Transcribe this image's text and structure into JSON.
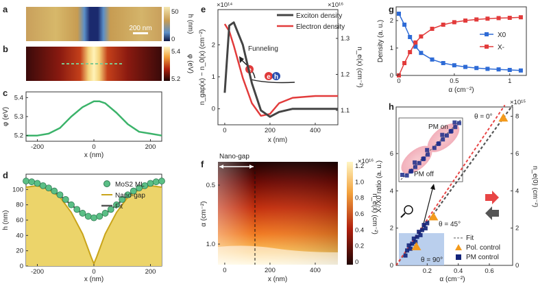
{
  "panels": {
    "a": {
      "label": "a",
      "scalebar": "200 nm",
      "cbar": {
        "ticks": [
          "50",
          "0"
        ],
        "label": "h (nm)"
      }
    },
    "b": {
      "label": "b",
      "cbar": {
        "ticks": [
          "5.4",
          "5.2"
        ],
        "label": "φ (eV)"
      }
    },
    "c": {
      "label": "c",
      "xlabel": "x (nm)",
      "ylabel": "φ (eV)",
      "xticks": [
        "-200",
        "0",
        "200"
      ],
      "yticks": [
        "5.4",
        "5.3",
        "5.2"
      ]
    },
    "d": {
      "label": "d",
      "xlabel": "x (nm)",
      "ylabel": "h (nm)",
      "xticks": [
        "-200",
        "0",
        "200"
      ],
      "yticks": [
        "100",
        "80",
        "60",
        "40",
        "20",
        "0"
      ],
      "legend": [
        "MoS2 ML",
        "Nano-gap",
        "Fit"
      ]
    },
    "e": {
      "label": "e",
      "xlabel": "x (nm)",
      "ylabel_left": "n_gap(x) − n_0(x) (cm⁻²)",
      "ylabel_right": "n_e(x) (cm⁻²)",
      "left_exp": "×10¹⁴",
      "right_exp": "×10¹⁶",
      "xticks": [
        "0",
        "200",
        "400"
      ],
      "yticks_left": [
        "2",
        "1",
        "0"
      ],
      "yticks_right": [
        "1.3",
        "1.2",
        "1.1"
      ],
      "legend": [
        "Exciton density",
        "Electron density"
      ],
      "annotation": "Funneling",
      "badges": [
        "e",
        "e",
        "h"
      ]
    },
    "f": {
      "label": "f",
      "xlabel": "x (nm)",
      "ylabel": "α (cm⁻²)",
      "annotation": "Nano-gap",
      "xticks": [
        "0",
        "200",
        "400"
      ],
      "yticks": [
        "0.5",
        "1.0"
      ],
      "cbar": {
        "ticks": [
          "1.2",
          "1.0",
          "0.8",
          "0.6",
          "0.4",
          "0.2",
          "0"
        ],
        "exp": "×10¹⁶",
        "label": "n_e(x) (cm⁻²)"
      }
    },
    "g": {
      "label": "g",
      "xlabel": "α (cm⁻²)",
      "ylabel": "Density (a. u.)",
      "xticks": [
        "0",
        "0.5",
        "1"
      ],
      "yticks": [
        "2",
        "1",
        "0"
      ],
      "legend": [
        "X0",
        "X-"
      ]
    },
    "h": {
      "label": "h",
      "xlabel": "α (cm⁻²)",
      "ylabel_left": "X-/X0 ratio (a. u.)",
      "ylabel_right": "n_e(0) (cm⁻²)",
      "right_exp": "×10¹⁵",
      "xticks": [
        "0.2",
        "0.4",
        "0.6"
      ],
      "yticks_left": [
        "6",
        "4",
        "2",
        "0"
      ],
      "yticks_right": [
        "8",
        "6",
        "4",
        "2",
        "0"
      ],
      "theta": [
        "θ = 0°",
        "θ = 45°",
        "θ = 90°"
      ],
      "inset": [
        "PM on",
        "PM off"
      ],
      "legend": [
        "Fit",
        "Pol. control",
        "PM control"
      ]
    }
  },
  "chart_data": [
    {
      "panel": "c",
      "type": "line",
      "x": [
        -240,
        -200,
        -160,
        -120,
        -80,
        -40,
        0,
        20,
        40,
        80,
        120,
        160,
        200,
        240
      ],
      "y": [
        5.2,
        5.2,
        5.21,
        5.24,
        5.3,
        5.35,
        5.38,
        5.38,
        5.37,
        5.32,
        5.26,
        5.22,
        5.21,
        5.2
      ],
      "xlim": [
        -240,
        240
      ],
      "ylim": [
        5.17,
        5.43
      ]
    },
    {
      "panel": "d",
      "type": "line+scatter",
      "xlim": [
        -240,
        240
      ],
      "ylim": [
        0,
        120
      ],
      "series": [
        {
          "name": "Nano-gap",
          "x": [
            -240,
            -200,
            -160,
            -120,
            -80,
            -40,
            -10,
            0,
            10,
            40,
            80,
            120,
            160,
            200,
            240
          ],
          "y": [
            103,
            105,
            100,
            90,
            70,
            42,
            12,
            3,
            12,
            42,
            70,
            90,
            100,
            105,
            103
          ]
        },
        {
          "name": "Fit",
          "x": [
            -240,
            -200,
            -160,
            -120,
            -80,
            -40,
            0,
            40,
            80,
            120,
            160,
            200,
            240
          ],
          "y": [
            110,
            108,
            102,
            92,
            80,
            68,
            63,
            68,
            80,
            92,
            102,
            108,
            110
          ]
        },
        {
          "name": "MoS2 ML",
          "x": [
            -240,
            -220,
            -200,
            -180,
            -160,
            -140,
            -120,
            -100,
            -80,
            -60,
            -40,
            -20,
            0,
            20,
            40,
            60,
            80,
            100,
            120,
            140,
            160,
            180,
            200,
            220,
            240
          ],
          "y": [
            111,
            110,
            108,
            105,
            102,
            98,
            93,
            87,
            80,
            74,
            69,
            65,
            63,
            65,
            69,
            74,
            80,
            87,
            93,
            98,
            102,
            105,
            108,
            110,
            111
          ]
        }
      ]
    },
    {
      "panel": "e",
      "type": "line",
      "xlim": [
        -30,
        500
      ],
      "series": [
        {
          "name": "Exciton density",
          "axis": "left",
          "x": [
            0,
            20,
            40,
            80,
            120,
            160,
            200,
            240,
            300,
            400,
            500
          ],
          "y": [
            0.5,
            2.6,
            2.7,
            2.0,
            0.8,
            -0.05,
            -0.25,
            -0.1,
            0,
            0,
            0
          ],
          "ylim": [
            -0.5,
            3.1
          ]
        },
        {
          "name": "Electron density",
          "axis": "right",
          "x": [
            0,
            20,
            40,
            80,
            120,
            160,
            200,
            240,
            300,
            400,
            500
          ],
          "y": [
            1.34,
            1.32,
            1.28,
            1.19,
            1.12,
            1.085,
            1.09,
            1.12,
            1.135,
            1.14,
            1.14
          ],
          "ylim": [
            1.06,
            1.38
          ]
        }
      ]
    },
    {
      "panel": "g",
      "type": "line+scatter",
      "xlim": [
        0,
        1.15
      ],
      "ylim": [
        0,
        2.5
      ],
      "series": [
        {
          "name": "X0",
          "x": [
            0,
            0.05,
            0.1,
            0.15,
            0.2,
            0.3,
            0.4,
            0.5,
            0.6,
            0.7,
            0.8,
            0.9,
            1.0,
            1.1
          ],
          "y": [
            2.25,
            1.85,
            1.4,
            1.05,
            0.82,
            0.58,
            0.45,
            0.37,
            0.31,
            0.27,
            0.24,
            0.22,
            0.2,
            0.18
          ]
        },
        {
          "name": "X-",
          "x": [
            0,
            0.05,
            0.1,
            0.15,
            0.2,
            0.3,
            0.4,
            0.5,
            0.6,
            0.7,
            0.8,
            0.9,
            1.0,
            1.1
          ],
          "y": [
            0,
            0.45,
            0.85,
            1.2,
            1.42,
            1.7,
            1.85,
            1.94,
            2.0,
            2.04,
            2.07,
            2.09,
            2.1,
            2.12
          ]
        }
      ]
    },
    {
      "panel": "h",
      "type": "scatter",
      "xlim": [
        0,
        0.75
      ],
      "ylim": [
        0,
        8.5
      ],
      "series": [
        {
          "name": "Pol. control",
          "x": [
            0.13,
            0.24,
            0.69
          ],
          "y": [
            1.0,
            2.6,
            7.9
          ]
        },
        {
          "name": "Fit",
          "x": [
            0,
            0.75
          ],
          "y": [
            0,
            8.6
          ]
        }
      ]
    }
  ]
}
